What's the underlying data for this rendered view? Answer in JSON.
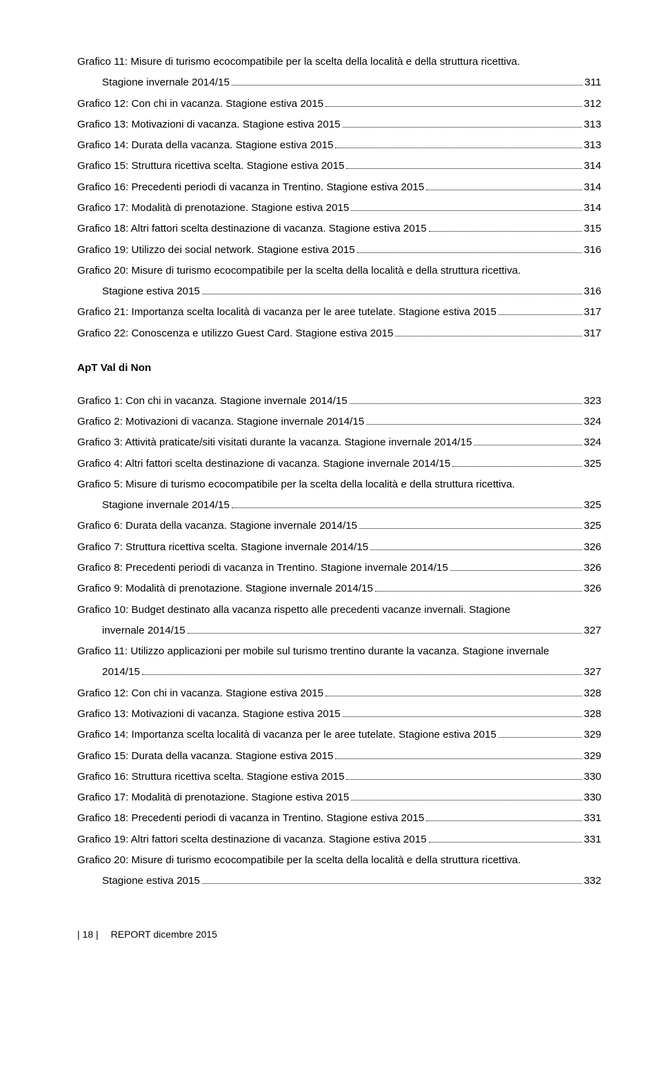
{
  "toc_top": [
    {
      "text": "Grafico 11: Misure di turismo ecocompatibile per la scelta della località e della struttura ricettiva.",
      "cont": true
    },
    {
      "text": "Stagione invernale 2014/15",
      "page": "311",
      "indent": true
    },
    {
      "text": "Grafico 12: Con chi in vacanza. Stagione estiva 2015",
      "page": "312"
    },
    {
      "text": "Grafico 13: Motivazioni di vacanza. Stagione estiva 2015",
      "page": "313"
    },
    {
      "text": "Grafico 14: Durata della vacanza. Stagione estiva 2015",
      "page": "313"
    },
    {
      "text": "Grafico 15: Struttura ricettiva scelta. Stagione estiva 2015",
      "page": "314"
    },
    {
      "text": "Grafico 16: Precedenti periodi di vacanza in Trentino. Stagione estiva 2015",
      "page": "314"
    },
    {
      "text": "Grafico 17: Modalità di prenotazione. Stagione estiva 2015",
      "page": "314"
    },
    {
      "text": "Grafico 18: Altri fattori scelta destinazione di vacanza. Stagione estiva 2015",
      "page": "315"
    },
    {
      "text": "Grafico 19: Utilizzo dei social network. Stagione estiva 2015",
      "page": "316"
    },
    {
      "text": "Grafico 20: Misure di turismo ecocompatibile per la scelta della località e della struttura ricettiva.",
      "cont": true
    },
    {
      "text": "Stagione estiva 2015",
      "page": "316",
      "indent": true
    },
    {
      "text": "Grafico 21: Importanza scelta località di vacanza per le aree tutelate. Stagione estiva 2015",
      "page": "317"
    },
    {
      "text": "Grafico 22: Conoscenza e utilizzo Guest Card. Stagione estiva 2015",
      "page": "317"
    }
  ],
  "section_heading": "ApT Val di Non",
  "toc_bottom": [
    {
      "text": "Grafico 1: Con chi in vacanza. Stagione invernale 2014/15",
      "page": "323"
    },
    {
      "text": "Grafico 2: Motivazioni di vacanza. Stagione invernale 2014/15",
      "page": "324"
    },
    {
      "text": "Grafico 3: Attività praticate/siti visitati durante la vacanza.  Stagione invernale 2014/15",
      "page": "324"
    },
    {
      "text": "Grafico 4: Altri fattori scelta destinazione di vacanza. Stagione invernale 2014/15",
      "page": "325"
    },
    {
      "text": "Grafico 5: Misure di turismo ecocompatibile per la scelta della località e della struttura ricettiva.",
      "cont": true
    },
    {
      "text": "Stagione invernale 2014/15",
      "page": "325",
      "indent": true
    },
    {
      "text": "Grafico 6: Durata della vacanza. Stagione invernale 2014/15",
      "page": "325"
    },
    {
      "text": "Grafico 7: Struttura ricettiva scelta. Stagione invernale 2014/15",
      "page": "326"
    },
    {
      "text": "Grafico 8: Precedenti periodi di vacanza in Trentino. Stagione invernale 2014/15",
      "page": "326"
    },
    {
      "text": "Grafico 9: Modalità di prenotazione. Stagione invernale 2014/15",
      "page": "326"
    },
    {
      "text": "Grafico 10: Budget destinato alla vacanza rispetto alle precedenti vacanze invernali. Stagione",
      "cont": true
    },
    {
      "text": "invernale 2014/15",
      "page": "327",
      "indent": true
    },
    {
      "text": "Grafico 11: Utilizzo applicazioni per mobile sul turismo trentino durante la vacanza. Stagione invernale",
      "cont": true
    },
    {
      "text": "2014/15",
      "page": "327",
      "indent": true
    },
    {
      "text": "Grafico 12: Con chi in vacanza. Stagione estiva 2015",
      "page": "328"
    },
    {
      "text": "Grafico 13: Motivazioni di vacanza. Stagione estiva 2015",
      "page": "328"
    },
    {
      "text": "Grafico 14: Importanza scelta località di vacanza per le aree tutelate. Stagione estiva 2015",
      "page": "329"
    },
    {
      "text": "Grafico 15: Durata della vacanza. Stagione estiva 2015",
      "page": "329"
    },
    {
      "text": "Grafico 16: Struttura ricettiva scelta. Stagione estiva 2015",
      "page": "330"
    },
    {
      "text": "Grafico 17: Modalità di prenotazione. Stagione estiva 2015",
      "page": "330"
    },
    {
      "text": "Grafico 18: Precedenti periodi di vacanza in Trentino. Stagione estiva 2015",
      "page": "331"
    },
    {
      "text": "Grafico 19: Altri fattori scelta destinazione di vacanza. Stagione estiva 2015",
      "page": "331"
    },
    {
      "text": "Grafico 20: Misure di turismo ecocompatibile per la scelta della località e della struttura ricettiva.",
      "cont": true
    },
    {
      "text": "Stagione estiva 2015",
      "page": "332",
      "indent": true
    }
  ],
  "footer": {
    "page_label": "| 18 |",
    "report": "REPORT dicembre 2015"
  }
}
